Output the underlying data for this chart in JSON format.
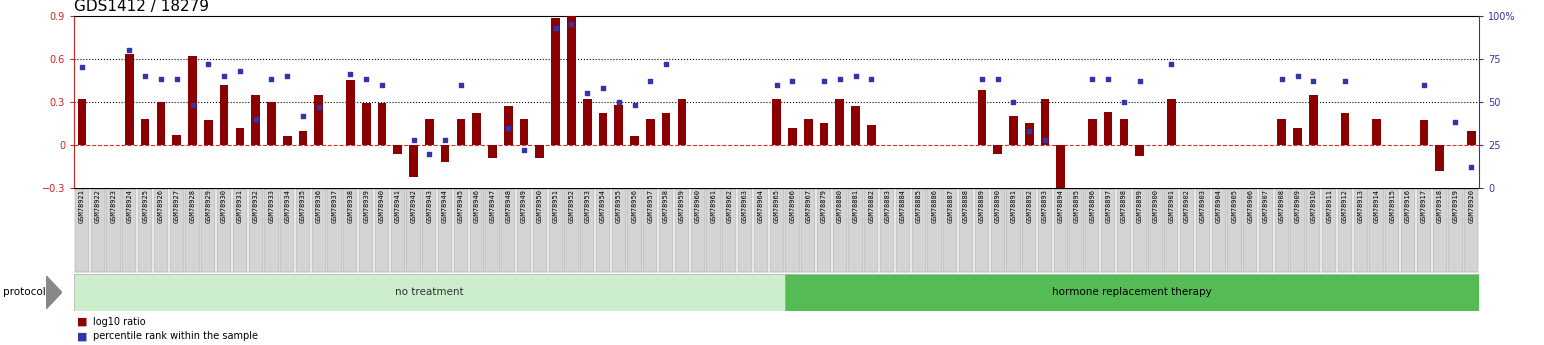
{
  "title": "GDS1412 / 18279",
  "samples": [
    "GSM78921",
    "GSM78922",
    "GSM78923",
    "GSM78924",
    "GSM78925",
    "GSM78926",
    "GSM78927",
    "GSM78928",
    "GSM78929",
    "GSM78930",
    "GSM78931",
    "GSM78932",
    "GSM78933",
    "GSM78934",
    "GSM78935",
    "GSM78936",
    "GSM78937",
    "GSM78938",
    "GSM78939",
    "GSM78940",
    "GSM78941",
    "GSM78942",
    "GSM78943",
    "GSM78944",
    "GSM78945",
    "GSM78946",
    "GSM78947",
    "GSM78948",
    "GSM78949",
    "GSM78950",
    "GSM78951",
    "GSM78952",
    "GSM78953",
    "GSM78954",
    "GSM78955",
    "GSM78956",
    "GSM78957",
    "GSM78958",
    "GSM78959",
    "GSM78960",
    "GSM78961",
    "GSM78962",
    "GSM78963",
    "GSM78964",
    "GSM78965",
    "GSM78966",
    "GSM78967",
    "GSM78879",
    "GSM78880",
    "GSM78881",
    "GSM78882",
    "GSM78883",
    "GSM78884",
    "GSM78885",
    "GSM78886",
    "GSM78887",
    "GSM78888",
    "GSM78889",
    "GSM78890",
    "GSM78891",
    "GSM78892",
    "GSM78893",
    "GSM78894",
    "GSM78895",
    "GSM78896",
    "GSM78897",
    "GSM78898",
    "GSM78899",
    "GSM78900",
    "GSM78901",
    "GSM78902",
    "GSM78903",
    "GSM78904",
    "GSM78905",
    "GSM78906",
    "GSM78907",
    "GSM78908",
    "GSM78909",
    "GSM78910",
    "GSM78911",
    "GSM78912",
    "GSM78913",
    "GSM78914",
    "GSM78915",
    "GSM78916",
    "GSM78917",
    "GSM78918",
    "GSM78919",
    "GSM78920"
  ],
  "log10_ratio": [
    0.32,
    0.0,
    0.0,
    0.63,
    0.18,
    0.3,
    0.07,
    0.62,
    0.17,
    0.42,
    0.12,
    0.35,
    0.3,
    0.06,
    0.1,
    0.35,
    0.0,
    0.45,
    0.29,
    0.29,
    -0.06,
    -0.22,
    0.18,
    -0.12,
    0.18,
    0.22,
    -0.09,
    0.27,
    0.18,
    -0.09,
    0.88,
    0.9,
    0.32,
    0.22,
    0.28,
    0.06,
    0.18,
    0.22,
    0.32,
    0.0,
    0.0,
    0.0,
    0.0,
    0.0,
    0.32,
    0.12,
    0.18,
    0.15,
    0.32,
    0.27,
    0.14,
    0.0,
    0.0,
    0.0,
    0.0,
    0.0,
    0.0,
    0.38,
    -0.06,
    0.2,
    0.15,
    0.32,
    -0.36,
    0.0,
    0.18,
    0.23,
    0.18,
    -0.08,
    0.0,
    0.32,
    0.0,
    0.0,
    0.0,
    0.0,
    0.0,
    0.0,
    0.18,
    0.12,
    0.35,
    0.0,
    0.22,
    0.0,
    0.18,
    0.0,
    0.0,
    0.17,
    -0.18,
    0.0,
    0.1
  ],
  "percentile_rank": [
    0.7,
    0.0,
    0.0,
    0.8,
    0.65,
    0.63,
    0.63,
    0.48,
    0.72,
    0.65,
    0.68,
    0.4,
    0.63,
    0.65,
    0.42,
    0.47,
    0.0,
    0.66,
    0.63,
    0.6,
    0.0,
    0.28,
    0.2,
    0.28,
    0.6,
    0.0,
    0.0,
    0.35,
    0.22,
    0.0,
    0.93,
    0.95,
    0.55,
    0.58,
    0.5,
    0.48,
    0.62,
    0.72,
    0.0,
    0.0,
    0.0,
    0.0,
    0.0,
    0.0,
    0.6,
    0.62,
    0.0,
    0.62,
    0.63,
    0.65,
    0.63,
    0.0,
    0.0,
    0.0,
    0.0,
    0.0,
    0.0,
    0.63,
    0.63,
    0.5,
    0.33,
    0.28,
    0.0,
    0.0,
    0.63,
    0.63,
    0.5,
    0.62,
    0.0,
    0.72,
    0.0,
    0.0,
    0.0,
    0.0,
    0.0,
    0.0,
    0.63,
    0.65,
    0.62,
    0.0,
    0.62,
    0.0,
    0.0,
    0.0,
    0.0,
    0.6,
    0.0,
    0.38,
    0.12
  ],
  "no_treatment_count": 45,
  "bar_color": "#8B0000",
  "dot_color": "#3333aa",
  "ylim_left": [
    -0.3,
    0.9
  ],
  "ylim_right": [
    0,
    100
  ],
  "yticks_left": [
    -0.3,
    0.0,
    0.3,
    0.6,
    0.9
  ],
  "yticks_right": [
    0,
    25,
    50,
    75,
    100
  ],
  "hline_positions": [
    0.3,
    0.6
  ],
  "title_fontsize": 11,
  "bar_width": 0.55,
  "nt_color": "#cceecc",
  "ht_color": "#55bb55",
  "no_treatment_label": "no treatment",
  "hormone_label": "hormone replacement therapy",
  "protocol_label": "protocol",
  "legend_log10": "log10 ratio",
  "legend_pct": "percentile rank within the sample"
}
